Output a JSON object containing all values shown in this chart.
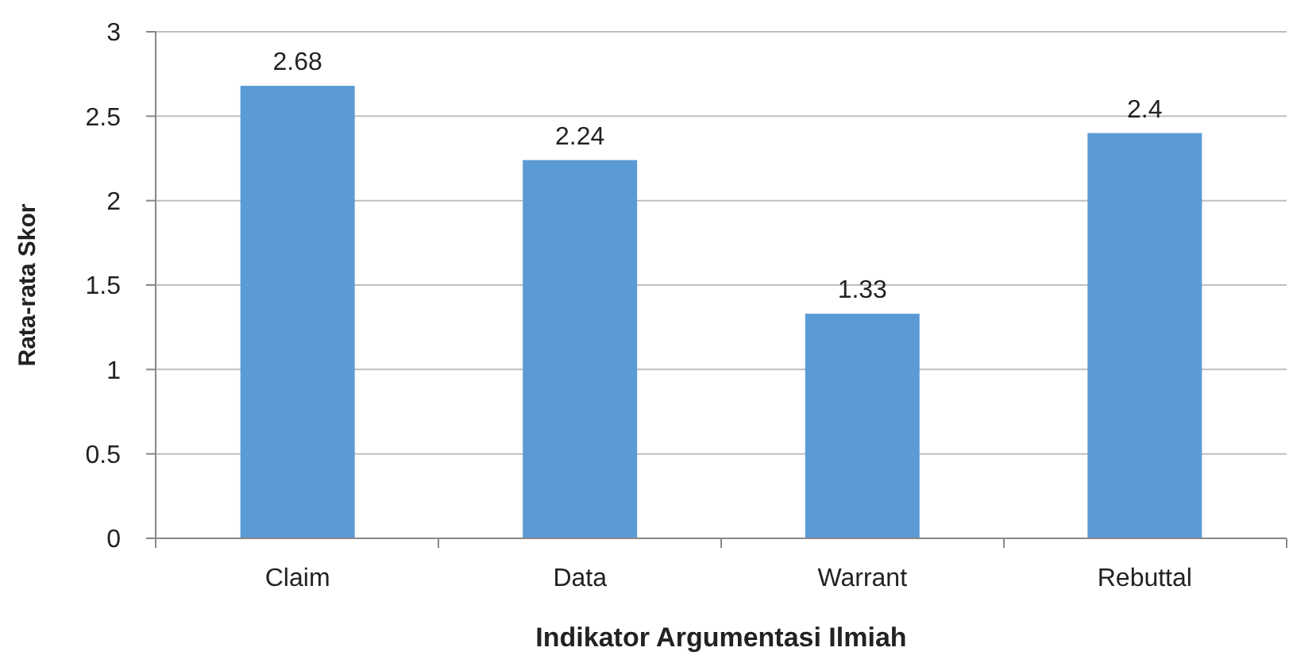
{
  "chart_data": {
    "type": "bar",
    "xlabel": "Indikator Argumentasi Ilmiah",
    "ylabel": "Rata-rata Skor",
    "categories": [
      "Claim",
      "Data",
      "Warrant",
      "Rebuttal"
    ],
    "values": [
      2.68,
      2.24,
      1.33,
      2.4
    ],
    "color": "#5b9bd5",
    "ylim": [
      0,
      3
    ],
    "yticks": [
      0,
      0.5,
      1,
      1.5,
      2,
      2.5,
      3
    ],
    "grid": "y",
    "data_labels": true
  }
}
